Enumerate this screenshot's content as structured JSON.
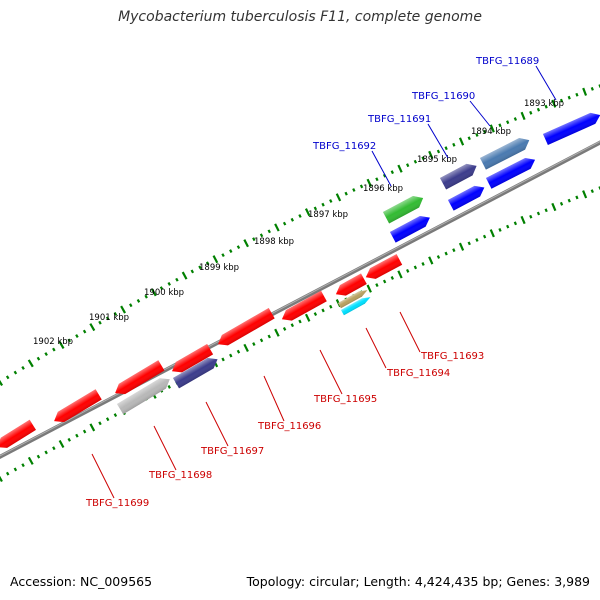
{
  "title": "Mycobacterium tuberculosis F11, complete genome",
  "footer": {
    "accession": "Accession: NC_009565",
    "summary": "Topology: circular; Length: 4,424,435 bp; Genes: 3,989"
  },
  "colors": {
    "backbone": "#808080",
    "tick": "#008000",
    "forward_label": "#0000cc",
    "reverse_label": "#cc0000",
    "red_gene": "#ff0000",
    "blue_gene": "#0000ff",
    "navy_gene": "#3c3c8c",
    "steel_gene": "#4a7ab0",
    "green_gene": "#33bb33",
    "gray_gene": "#b8b8b8",
    "tan_gene": "#b8a060",
    "cyan_gene": "#00e0ff"
  },
  "scale_labels": [
    "1893 kbp",
    "1894 kbp",
    "1895 kbp",
    "1896 kbp",
    "1897 kbp",
    "1898 kbp",
    "1899 kbp",
    "1900 kbp",
    "1901 kbp",
    "1902 kbp"
  ],
  "gene_labels": {
    "forward": [
      "TBFG_11689",
      "TBFG_11690",
      "TBFG_11691",
      "TBFG_11692"
    ],
    "reverse": [
      "TBFG_11693",
      "TBFG_11694",
      "TBFG_11695",
      "TBFG_11696",
      "TBFG_11697",
      "TBFG_11698",
      "TBFG_11699"
    ]
  }
}
